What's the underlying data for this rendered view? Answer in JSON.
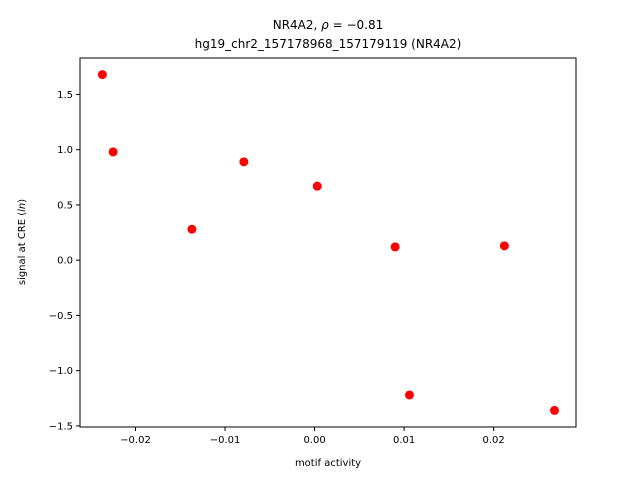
{
  "chart_data": {
    "type": "scatter",
    "title_line1_prefix": "NR4A2, ",
    "title_line1_symbol": "ρ",
    "title_line1_suffix": " = −0.81",
    "title_line2": "hg19_chr2_157178968_157179119 (NR4A2)",
    "xlabel": "motif activity",
    "ylabel_prefix": "signal at CRE (",
    "ylabel_italic": "ln",
    "ylabel_suffix": ")",
    "xlim": [
      -0.0262,
      0.0292
    ],
    "ylim": [
      -1.51,
      1.83
    ],
    "xticks": [
      -0.02,
      -0.01,
      0.0,
      0.01,
      0.02
    ],
    "xtick_labels": [
      "−0.02",
      "−0.01",
      "0.00",
      "0.01",
      "0.02"
    ],
    "yticks": [
      -1.5,
      -1.0,
      -0.5,
      0.0,
      0.5,
      1.0,
      1.5
    ],
    "ytick_labels": [
      "−1.5",
      "−1.0",
      "−0.5",
      "0.0",
      "0.5",
      "1.0",
      "1.5"
    ],
    "grid": false,
    "marker_color": "#ff0000",
    "points": [
      {
        "x": -0.0237,
        "y": 1.68
      },
      {
        "x": -0.0225,
        "y": 0.98
      },
      {
        "x": -0.0137,
        "y": 0.28
      },
      {
        "x": -0.0079,
        "y": 0.89
      },
      {
        "x": 0.0003,
        "y": 0.67
      },
      {
        "x": 0.009,
        "y": 0.12
      },
      {
        "x": 0.0106,
        "y": -1.22
      },
      {
        "x": 0.0212,
        "y": 0.13
      },
      {
        "x": 0.0268,
        "y": -1.36
      }
    ]
  }
}
